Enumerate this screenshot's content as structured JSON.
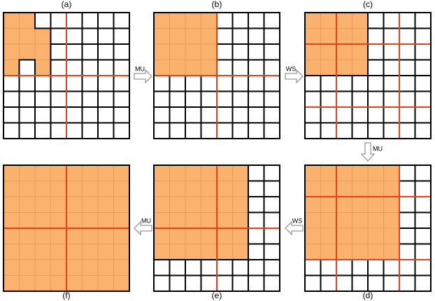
{
  "panels": [
    {
      "label": "(a)"
    },
    {
      "label": "(b)"
    },
    {
      "label": "(c)"
    },
    {
      "label": "(d)"
    },
    {
      "label": "(e)"
    },
    {
      "label": "(f)"
    }
  ],
  "arrows": [
    {
      "label": "MU"
    },
    {
      "label": "WS"
    },
    {
      "label": "MU"
    },
    {
      "label": "WS"
    },
    {
      "label": "MU"
    }
  ]
}
